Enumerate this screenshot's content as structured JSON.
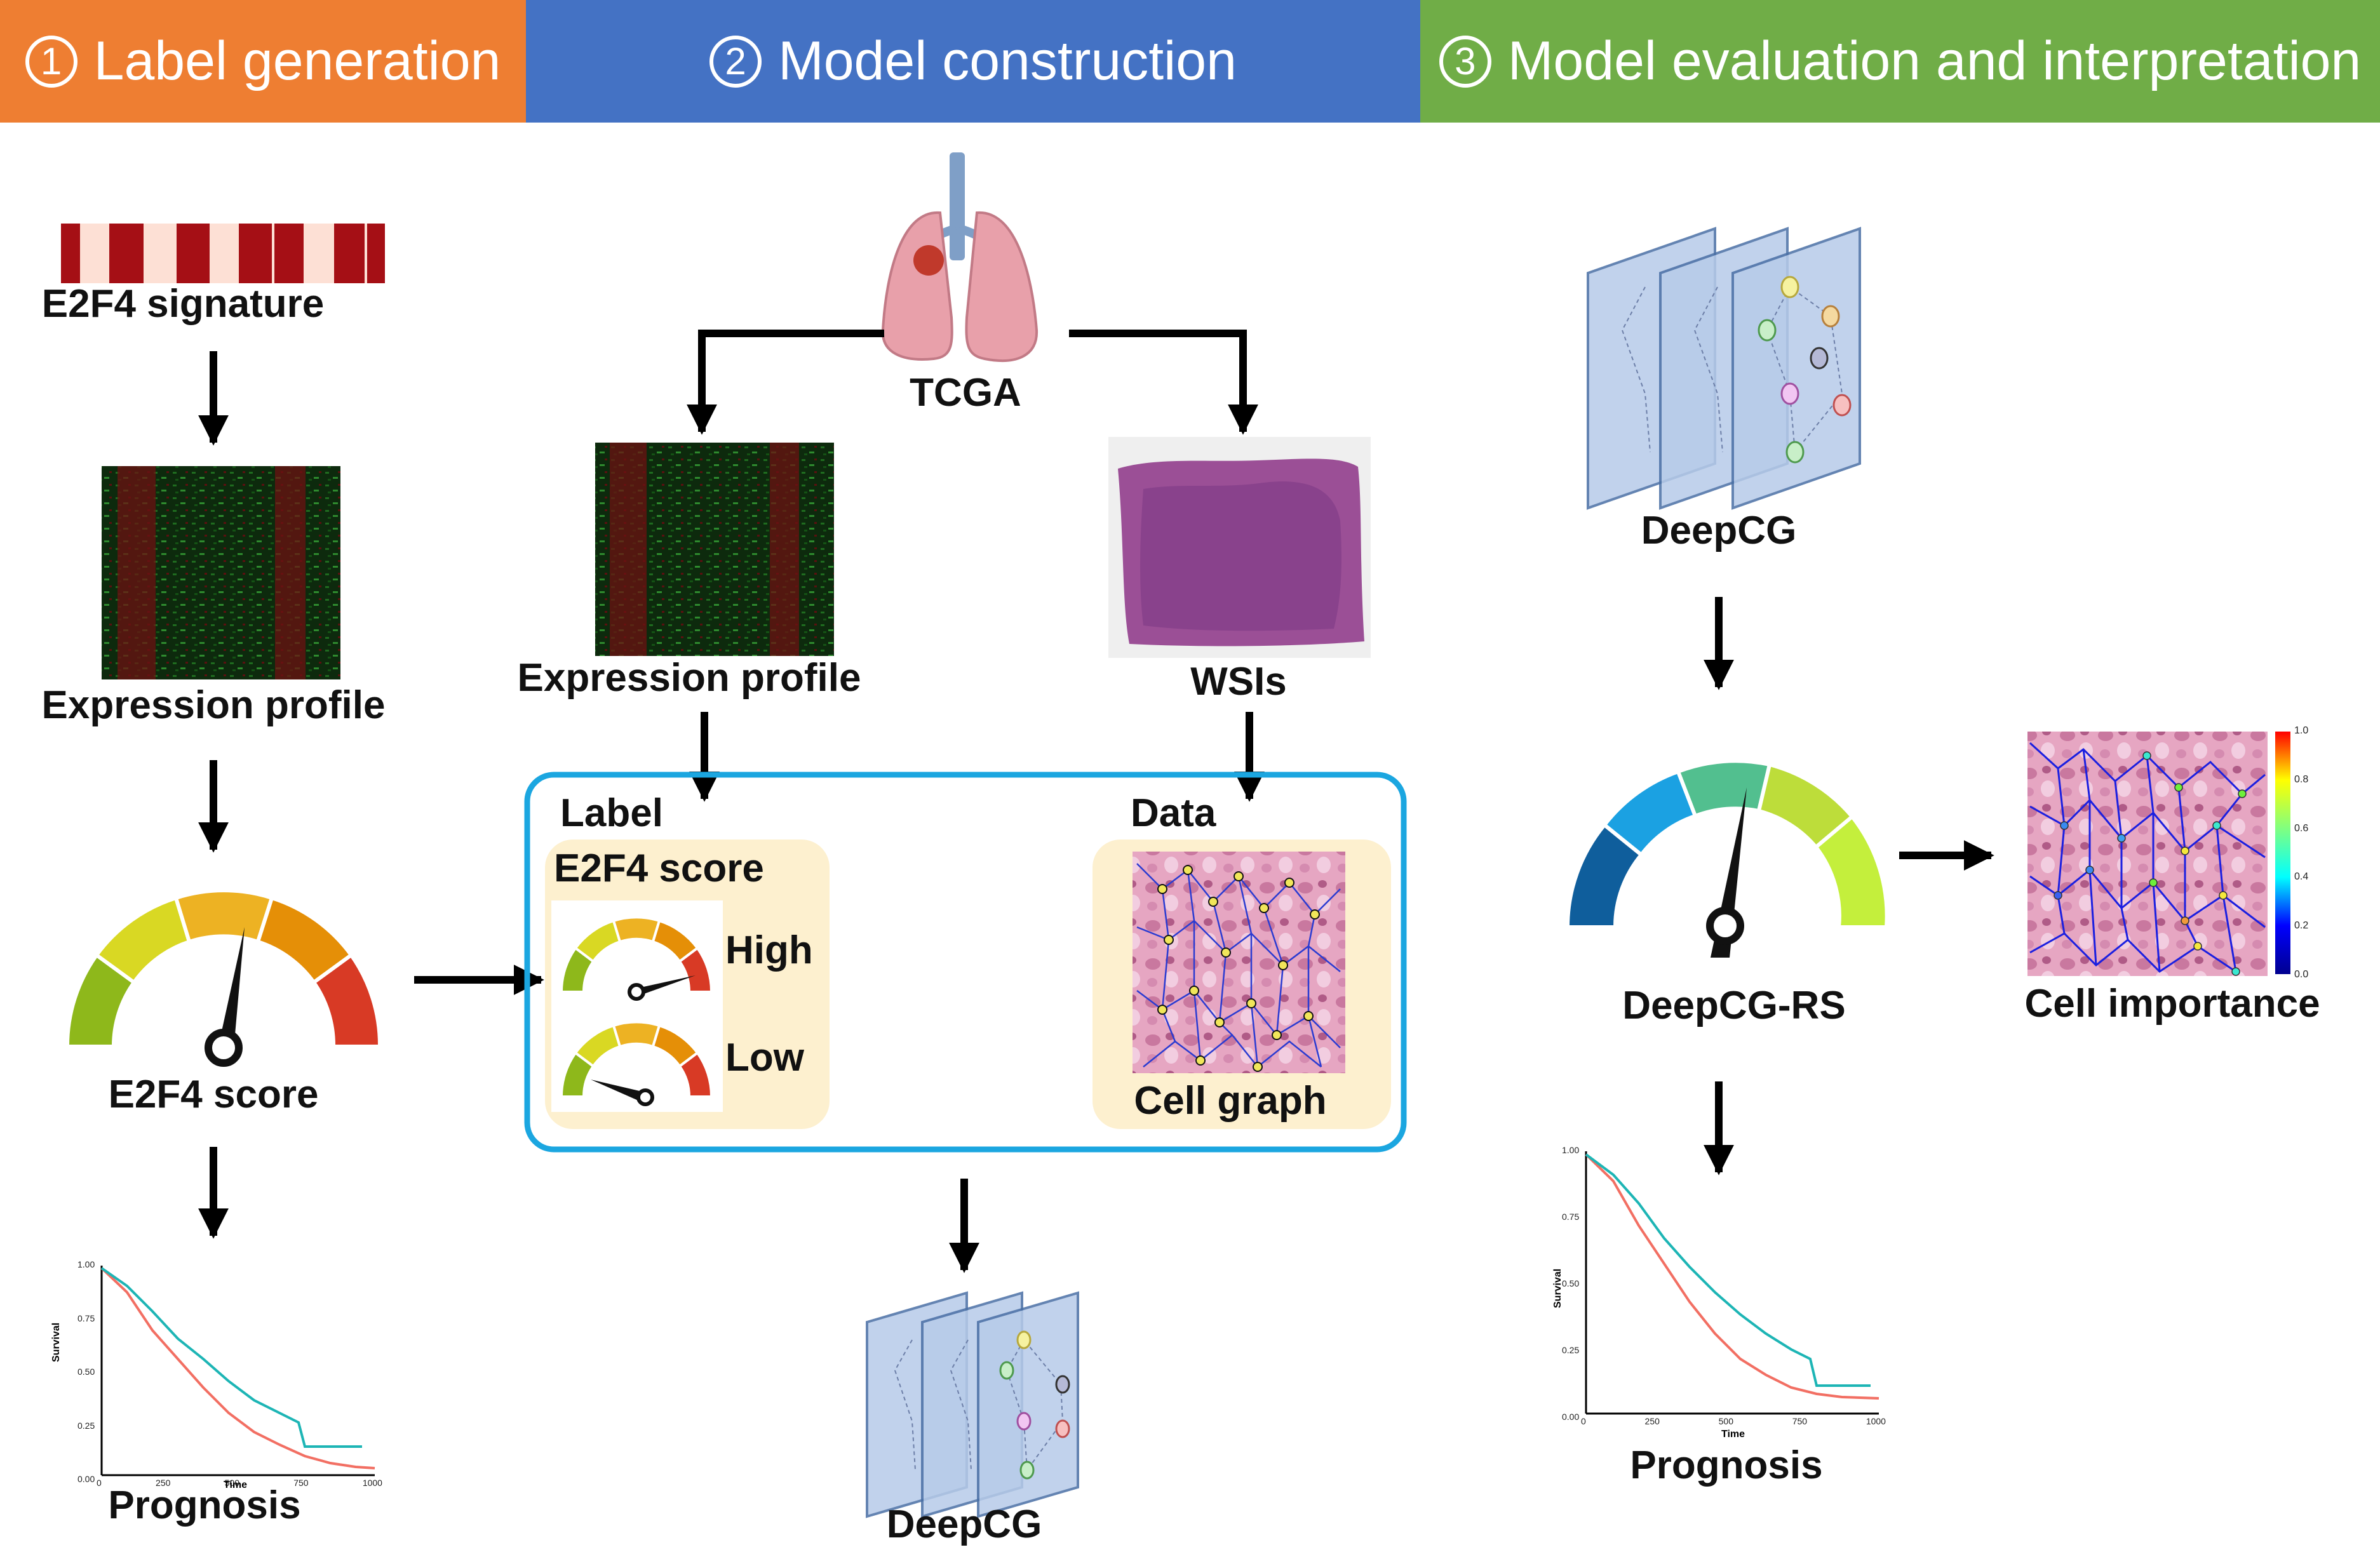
{
  "headers": [
    {
      "num": "1",
      "text": "Label generation",
      "color": "#EE7E32"
    },
    {
      "num": "2",
      "text": "Model construction",
      "color": "#4472C4"
    },
    {
      "num": "3",
      "text": "Model evaluation and interpretation",
      "color": "#70AD47"
    }
  ],
  "col1": {
    "signature": "E2F4 signature",
    "expression": "Expression profile",
    "score": "E2F4 score",
    "prognosis": "Prognosis"
  },
  "col2": {
    "tcga": "TCGA",
    "expression": "Expression profile",
    "wsis": "WSIs",
    "label": "Label",
    "data": "Data",
    "score": "E2F4 score",
    "high": "High",
    "low": "Low",
    "cellgraph": "Cell graph",
    "deepcg": "DeepCG"
  },
  "col3": {
    "deepcg": "DeepCG",
    "rs": "DeepCG-RS",
    "importance": "Cell importance",
    "prognosis": "Prognosis"
  },
  "colorbar_ticks": [
    "1.0",
    "0.8",
    "0.6",
    "0.4",
    "0.2",
    "0.0"
  ],
  "km_axes": {
    "ylabel": "Survival",
    "xlabel": "Time",
    "yticks": [
      "1.00",
      "0.75",
      "0.50",
      "0.25",
      "0.00"
    ],
    "xticks": [
      "0",
      "250",
      "500",
      "750",
      "1000"
    ]
  }
}
